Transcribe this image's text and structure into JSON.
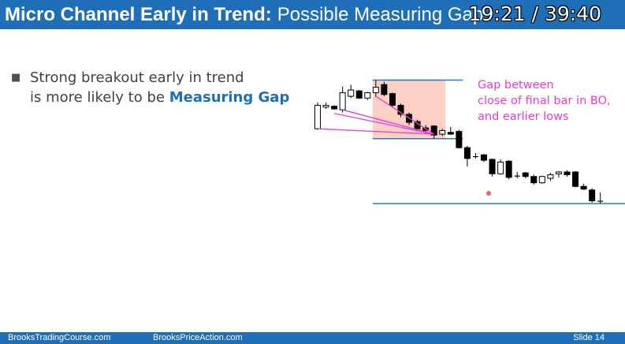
{
  "slide": {
    "title_bold": "Micro Channel Early in Trend:",
    "title_rest": "Possible Measuring Gap",
    "timer": "19:21 / 39:40",
    "bullet": {
      "line1": "Strong breakout early in trend",
      "line2_prefix": "is more likely to be",
      "line2_emphasis": "Measuring Gap"
    },
    "annotation": {
      "line1": "Gap between",
      "line2": "close of final bar in BO,",
      "line3": "and earlier lows"
    },
    "footer": {
      "left": "BrooksTradingCourse.com",
      "center": "BrooksPriceAction.com",
      "right": "Slide  14"
    }
  },
  "colors": {
    "brand_blue": "#1f6fb8",
    "annotation_magenta": "#e83ccc",
    "gap_zone": "#fcd0c4",
    "level_line": "#2e78c0"
  },
  "chart_data": {
    "type": "candlestick",
    "price_range": [
      0,
      100
    ],
    "gap_zone": {
      "bars": [
        7,
        15
      ],
      "price_low": 23,
      "price_high": 88
    },
    "levels": [
      {
        "price": 88,
        "bars": [
          7,
          17
        ]
      },
      {
        "price": 23,
        "bars": [
          7,
          17
        ]
      },
      {
        "price": -49,
        "bars": [
          7,
          37
        ]
      }
    ],
    "connector_lines": [
      {
        "from_bar": 0,
        "from_price": 34,
        "to_bar": 14,
        "to_price": 28
      },
      {
        "from_bar": 2,
        "from_price": 51,
        "to_bar": 14,
        "to_price": 28
      },
      {
        "from_bar": 3,
        "from_price": 55,
        "to_bar": 14,
        "to_price": 28
      },
      {
        "from_bar": 7,
        "from_price": 70,
        "to_bar": 14,
        "to_price": 28
      }
    ],
    "bars": [
      {
        "o": 34,
        "h": 63,
        "l": 33,
        "c": 60
      },
      {
        "o": 58,
        "h": 63,
        "l": 56,
        "c": 60
      },
      {
        "o": 59,
        "h": 60,
        "l": 55,
        "c": 56
      },
      {
        "o": 55,
        "h": 81,
        "l": 52,
        "c": 74
      },
      {
        "o": 70,
        "h": 83,
        "l": 68,
        "c": 77
      },
      {
        "o": 76,
        "h": 77,
        "l": 67,
        "c": 68
      },
      {
        "o": 68,
        "h": 75,
        "l": 66,
        "c": 74
      },
      {
        "o": 74,
        "h": 88,
        "l": 69,
        "c": 80
      },
      {
        "o": 83,
        "h": 86,
        "l": 70,
        "c": 72
      },
      {
        "o": 73,
        "h": 74,
        "l": 58,
        "c": 60
      },
      {
        "o": 60,
        "h": 62,
        "l": 47,
        "c": 50
      },
      {
        "o": 50,
        "h": 52,
        "l": 38,
        "c": 41
      },
      {
        "o": 42,
        "h": 44,
        "l": 31,
        "c": 34
      },
      {
        "o": 35,
        "h": 38,
        "l": 28,
        "c": 32
      },
      {
        "o": 37,
        "h": 38,
        "l": 23,
        "c": 27
      },
      {
        "o": 28,
        "h": 34,
        "l": 26,
        "c": 32
      },
      {
        "o": 30,
        "h": 36,
        "l": 27,
        "c": 28
      },
      {
        "o": 31,
        "h": 33,
        "l": 12,
        "c": 13
      },
      {
        "o": 13,
        "h": 15,
        "l": -8,
        "c": 1
      },
      {
        "o": 3,
        "h": 7,
        "l": 1,
        "c": 3
      },
      {
        "o": 5,
        "h": 6,
        "l": -3,
        "c": -1
      },
      {
        "o": 0,
        "h": 1,
        "l": -19,
        "c": -16
      },
      {
        "o": -16,
        "h": 0,
        "l": -17,
        "c": -3
      },
      {
        "o": -2,
        "h": -1,
        "l": -22,
        "c": -20
      },
      {
        "o": -19,
        "h": -14,
        "l": -21,
        "c": -18
      },
      {
        "o": -15,
        "h": -14,
        "l": -21,
        "c": -19
      },
      {
        "o": -19,
        "h": -17,
        "l": -28,
        "c": -26
      },
      {
        "o": -26,
        "h": -18,
        "l": -27,
        "c": -19
      },
      {
        "o": -21,
        "h": -15,
        "l": -24,
        "c": -17
      },
      {
        "o": -16,
        "h": -13,
        "l": -20,
        "c": -14
      },
      {
        "o": -14,
        "h": -12,
        "l": -19,
        "c": -17
      },
      {
        "o": -14,
        "h": -13,
        "l": -31,
        "c": -30
      },
      {
        "o": -30,
        "h": -27,
        "l": -34,
        "c": -33
      },
      {
        "o": -34,
        "h": -32,
        "l": -48,
        "c": -46
      },
      {
        "o": -46,
        "h": -37,
        "l": -49,
        "c": -47
      }
    ]
  }
}
